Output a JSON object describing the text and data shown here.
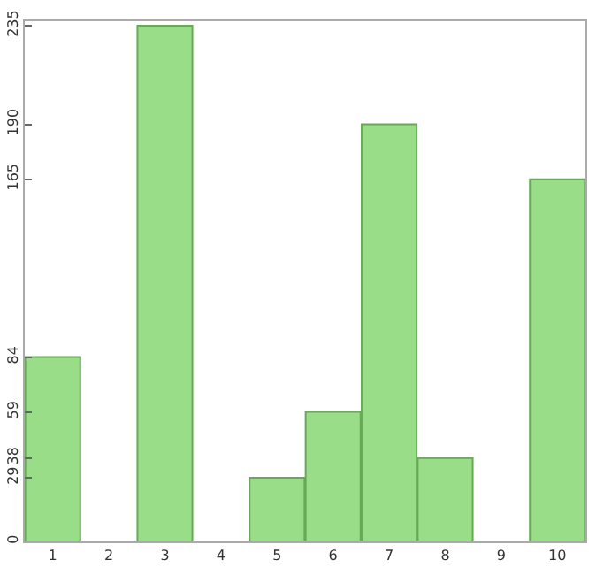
{
  "chart_data": {
    "type": "bar",
    "categories": [
      "1",
      "2",
      "3",
      "4",
      "5",
      "6",
      "7",
      "8",
      "9",
      "10"
    ],
    "values": [
      84,
      0,
      235,
      0,
      29,
      59,
      190,
      38,
      0,
      165
    ],
    "color": "#99dd88",
    "ylim": [
      0,
      237
    ],
    "yticks": [
      0,
      29,
      38,
      59,
      84,
      165,
      190,
      235
    ],
    "grid": false,
    "legend": false
  }
}
